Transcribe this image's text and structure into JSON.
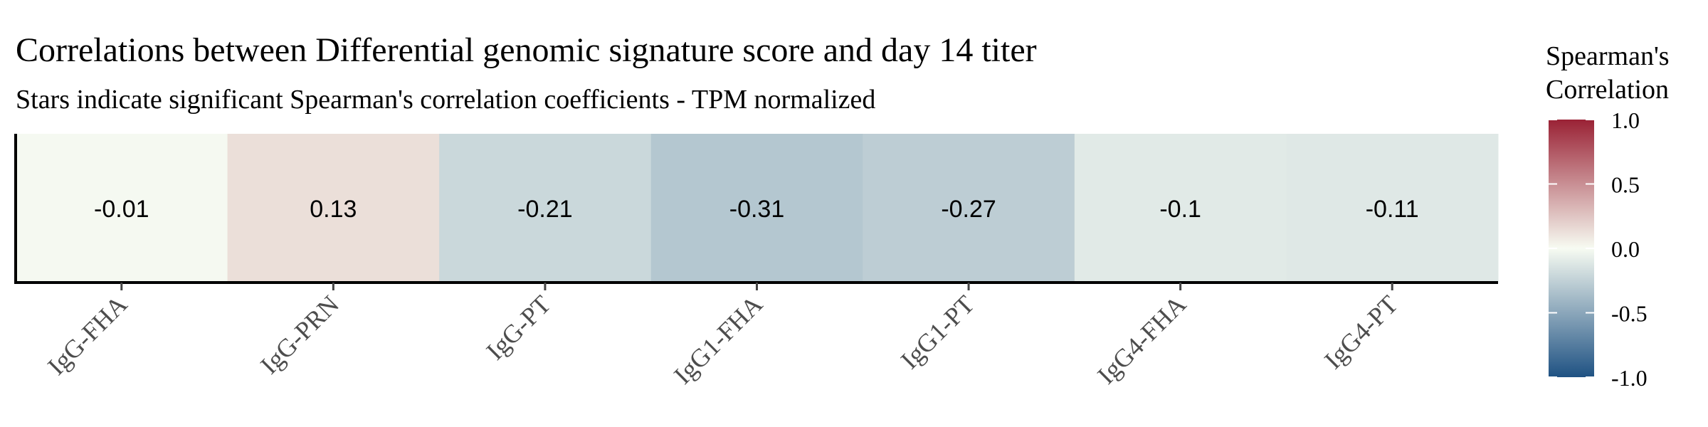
{
  "chart_data": {
    "type": "heatmap",
    "title": "Correlations between Differential genomic signature score and day 14 titer",
    "subtitle": "Stars indicate significant Spearman's correlation coefficients - TPM normalized",
    "xlabel": "",
    "ylabel": "",
    "categories": [
      "IgG-FHA",
      "IgG-PRN",
      "IgG-PT",
      "IgG1-FHA",
      "IgG1-PT",
      "IgG4-FHA",
      "IgG4-PT"
    ],
    "values": [
      -0.01,
      0.13,
      -0.21,
      -0.31,
      -0.27,
      -0.1,
      -0.11
    ],
    "value_labels": [
      "-0.01",
      "0.13",
      "-0.21",
      "-0.31",
      "-0.27",
      "-0.1",
      "-0.11"
    ],
    "legend": {
      "title_line1": "Spearman's",
      "title_line2": "Correlation",
      "ticks": [
        1.0,
        0.5,
        0.0,
        -0.5,
        -1.0
      ],
      "tick_labels": [
        "1.0",
        "0.5",
        "0.0",
        "-0.5",
        "-1.0"
      ],
      "limits": [
        -1.0,
        1.0
      ],
      "position": "right"
    },
    "colors": {
      "high": "#9a2235",
      "mid": "#f7fbf2",
      "low": "#1f5283"
    },
    "grid": false
  }
}
